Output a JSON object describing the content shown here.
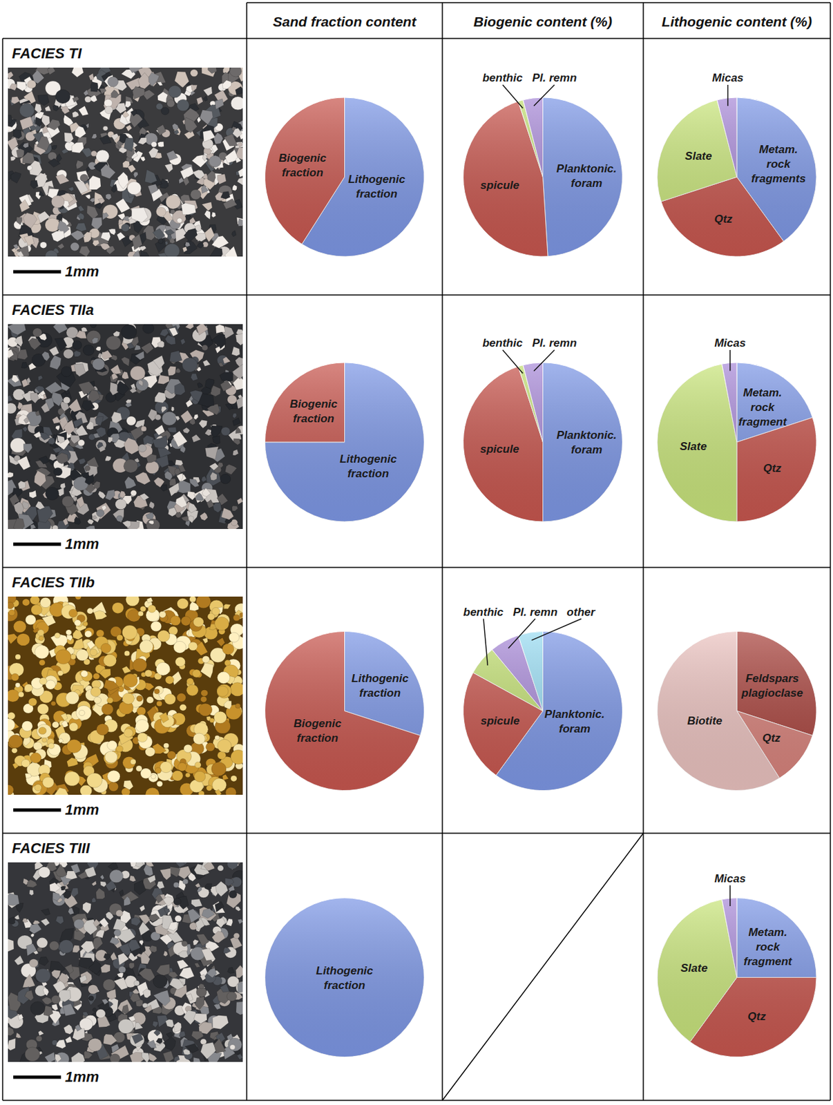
{
  "columns": [
    "Sand fraction content",
    "Biogenic content (%)",
    "Lithogenic content (%)"
  ],
  "rows": [
    {
      "label": "FACIES TI",
      "scale": "1mm"
    },
    {
      "label": "FACIES TIIa",
      "scale": "1mm"
    },
    {
      "label": "FACIES TIIb",
      "scale": "1mm"
    },
    {
      "label": "FACIES TIII",
      "scale": "1mm"
    }
  ],
  "chart_data": [
    {
      "type": "pie",
      "categories": [
        "Lithogenic fraction",
        "Biogenic fraction"
      ],
      "values": [
        59,
        41
      ],
      "colors": [
        "#7e98e6",
        "#c8574f"
      ]
    },
    {
      "type": "pie",
      "categories": [
        "Planktonic. foram",
        "spicule",
        "benthic",
        "Pl. remn"
      ],
      "values": [
        49,
        46,
        1,
        4
      ],
      "colors": [
        "#7e98e6",
        "#c8574f",
        "#c2df74",
        "#a98bd8"
      ]
    },
    {
      "type": "pie",
      "categories": [
        "Metam. rock fragments",
        "Qtz",
        "Slate",
        "Micas"
      ],
      "values": [
        40,
        30,
        26,
        4
      ],
      "colors": [
        "#7e98e6",
        "#c8574f",
        "#c9e57c",
        "#a98bd8"
      ]
    },
    {
      "type": "pie",
      "categories": [
        "Lithogenic fraction",
        "Biogenic fraction"
      ],
      "values": [
        75,
        25
      ],
      "colors": [
        "#7e98e6",
        "#c8574f"
      ]
    },
    {
      "type": "pie",
      "categories": [
        "Planktonic. foram",
        "spicule",
        "benthic",
        "Pl. remn"
      ],
      "values": [
        50,
        45,
        1,
        4
      ],
      "colors": [
        "#7e98e6",
        "#c8574f",
        "#c2df74",
        "#a98bd8"
      ]
    },
    {
      "type": "pie",
      "categories": [
        "Metam. rock fragment",
        "Qtz",
        "Slate",
        "Micas"
      ],
      "values": [
        20,
        30,
        47,
        3
      ],
      "colors": [
        "#7e98e6",
        "#c8574f",
        "#c9e57c",
        "#a98bd8"
      ]
    },
    {
      "type": "pie",
      "categories": [
        "Lithogenic fraction",
        "Biogenic fraction"
      ],
      "values": [
        30,
        70
      ],
      "colors": [
        "#7e98e6",
        "#c8574f"
      ]
    },
    {
      "type": "pie",
      "categories": [
        "Planktonic. foram",
        "spicule",
        "benthic",
        "Pl. remn",
        "other"
      ],
      "values": [
        60,
        23,
        6,
        6,
        5
      ],
      "colors": [
        "#7e98e6",
        "#c8574f",
        "#c2df74",
        "#a98bd8",
        "#9adcf2"
      ]
    },
    {
      "type": "pie",
      "categories": [
        "Feldspars plagioclase",
        "Qtz",
        "Biotite"
      ],
      "values": [
        30,
        11,
        59
      ],
      "colors": [
        "#a9453f",
        "#d8837c",
        "#ebc3c0"
      ]
    },
    {
      "type": "pie",
      "categories": [
        "Lithogenic fraction"
      ],
      "values": [
        100
      ],
      "colors": [
        "#7e98e6"
      ]
    },
    {
      "type": "pie",
      "categories": [
        "Metam. rock fragment",
        "Qtz",
        "Slate",
        "Micas"
      ],
      "values": [
        25,
        35,
        37,
        3
      ],
      "colors": [
        "#7e98e6",
        "#c8574f",
        "#c9e57c",
        "#a98bd8"
      ]
    }
  ]
}
